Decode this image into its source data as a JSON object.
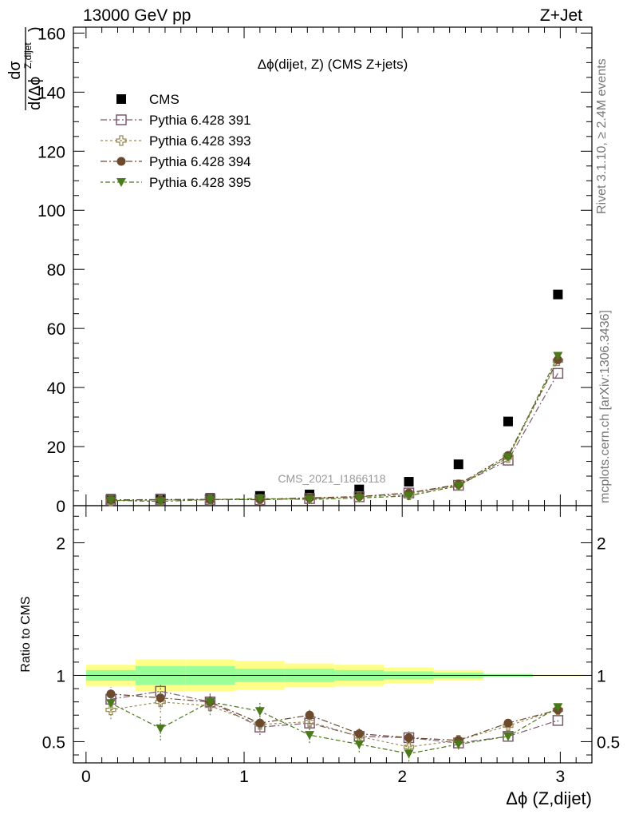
{
  "header": {
    "left": "13000 GeV pp",
    "right": "Z+Jet"
  },
  "side_labels": {
    "rivet": "Rivet 3.1.10, ≥ 2.4M events",
    "mcplots": "mcplots.cern.ch [arXiv:1306.3436]"
  },
  "colors": {
    "cms": "#000000",
    "p391": "#7a5a6e",
    "p393": "#9a8a5a",
    "p394": "#6b4a2e",
    "p395": "#4a7a1a",
    "band_outer": "#ffff88",
    "band_inner": "#99ff99"
  },
  "chart_data": [
    {
      "type": "scatter",
      "panel": "main",
      "title": "Δϕ(dijet, Z) (CMS Z+jets)",
      "ylabel_num": "dσ",
      "ylabel_den": "d(Δϕ",
      "ylabel_sup": "Z,dijet",
      "ylabel_close": ")",
      "watermark": "CMS_2021_I1866118",
      "xlim": [
        -0.08,
        3.2
      ],
      "ylim": [
        0,
        162
      ],
      "yticks": [
        "0",
        "20",
        "40",
        "60",
        "80",
        "100",
        "120",
        "140",
        "160"
      ],
      "legend_position": "top-left",
      "x": [
        0.157,
        0.471,
        0.785,
        1.1,
        1.414,
        1.728,
        2.042,
        2.356,
        2.67,
        2.985
      ],
      "series": [
        {
          "name": "CMS",
          "marker": "square-filled",
          "values": [
            2.3,
            2.4,
            2.6,
            3.3,
            3.8,
            5.5,
            8.1,
            14.0,
            28.5,
            71.5
          ]
        },
        {
          "name": "Pythia 6.428 391",
          "marker": "square-open",
          "values": [
            1.9,
            2.1,
            2.1,
            2.0,
            2.4,
            3.0,
            4.3,
            6.9,
            15.4,
            44.8
          ]
        },
        {
          "name": "Pythia 6.428 393",
          "marker": "cross-open",
          "values": [
            1.7,
            1.9,
            2.0,
            2.1,
            2.5,
            3.0,
            3.7,
            7.1,
            16.3,
            49.1
          ]
        },
        {
          "name": "Pythia 6.428 394",
          "marker": "circle-filled",
          "values": [
            1.95,
            2.0,
            2.1,
            2.1,
            2.65,
            3.1,
            4.3,
            7.2,
            17.0,
            49.4
          ]
        },
        {
          "name": "Pythia 6.428 395",
          "marker": "triangle-down-filled",
          "values": [
            1.8,
            1.45,
            2.05,
            2.4,
            2.1,
            2.6,
            3.3,
            6.7,
            16.4,
            50.7
          ]
        }
      ]
    },
    {
      "type": "scatter",
      "panel": "ratio",
      "xlabel": "Δϕ (Z,dijet)",
      "ylabel": "Ratio to CMS",
      "xlim": [
        -0.08,
        3.2
      ],
      "ylim": [
        0.34,
        2.28
      ],
      "xticks": [
        "0",
        "1",
        "2",
        "3"
      ],
      "yticks": [
        "0.5",
        "1",
        "2"
      ],
      "band_edges": [
        0,
        0.314,
        0.628,
        0.942,
        1.256,
        1.571,
        1.885,
        2.199,
        2.513,
        2.827,
        3.1416
      ],
      "band_outer": [
        [
          0.92,
          1.08
        ],
        [
          0.88,
          1.12
        ],
        [
          0.88,
          1.12
        ],
        [
          0.89,
          1.11
        ],
        [
          0.91,
          1.09
        ],
        [
          0.92,
          1.08
        ],
        [
          0.94,
          1.06
        ],
        [
          0.96,
          1.04
        ],
        [
          0.985,
          1.015
        ],
        [
          0.995,
          1.005
        ]
      ],
      "band_inner": [
        [
          0.96,
          1.04
        ],
        [
          0.93,
          1.07
        ],
        [
          0.93,
          1.07
        ],
        [
          0.95,
          1.05
        ],
        [
          0.95,
          1.05
        ],
        [
          0.96,
          1.04
        ],
        [
          0.97,
          1.03
        ],
        [
          0.98,
          1.02
        ],
        [
          0.99,
          1.01
        ],
        [
          0.998,
          1.002
        ]
      ],
      "x": [
        0.157,
        0.471,
        0.785,
        1.1,
        1.414,
        1.728,
        2.042,
        2.356,
        2.67,
        2.985
      ],
      "series": [
        {
          "name": "Pythia 6.428 391",
          "marker": "square-open",
          "values": [
            0.82,
            0.88,
            0.8,
            0.61,
            0.64,
            0.54,
            0.53,
            0.49,
            0.54,
            0.66
          ],
          "errors": [
            0.05,
            0.06,
            0.06,
            0.06,
            0.05,
            0.05,
            0.05,
            0.04,
            0.03,
            0.01
          ]
        },
        {
          "name": "Pythia 6.428 393",
          "marker": "cross-open",
          "values": [
            0.74,
            0.8,
            0.77,
            0.63,
            0.65,
            0.54,
            0.46,
            0.51,
            0.62,
            0.74
          ],
          "errors": [
            0.07,
            0.08,
            0.07,
            0.06,
            0.05,
            0.05,
            0.05,
            0.04,
            0.03,
            0.01
          ]
        },
        {
          "name": "Pythia 6.428 394",
          "marker": "circle-filled",
          "values": [
            0.86,
            0.83,
            0.8,
            0.64,
            0.7,
            0.56,
            0.53,
            0.51,
            0.64,
            0.74
          ],
          "errors": [
            0.05,
            0.06,
            0.06,
            0.05,
            0.04,
            0.04,
            0.04,
            0.03,
            0.03,
            0.01
          ]
        },
        {
          "name": "Pythia 6.428 395",
          "marker": "triangle-down-filled",
          "values": [
            0.79,
            0.6,
            0.8,
            0.73,
            0.55,
            0.48,
            0.41,
            0.48,
            0.54,
            0.76
          ],
          "errors": [
            0.06,
            0.09,
            0.07,
            0.07,
            0.06,
            0.06,
            0.06,
            0.04,
            0.03,
            0.01
          ]
        }
      ]
    }
  ]
}
